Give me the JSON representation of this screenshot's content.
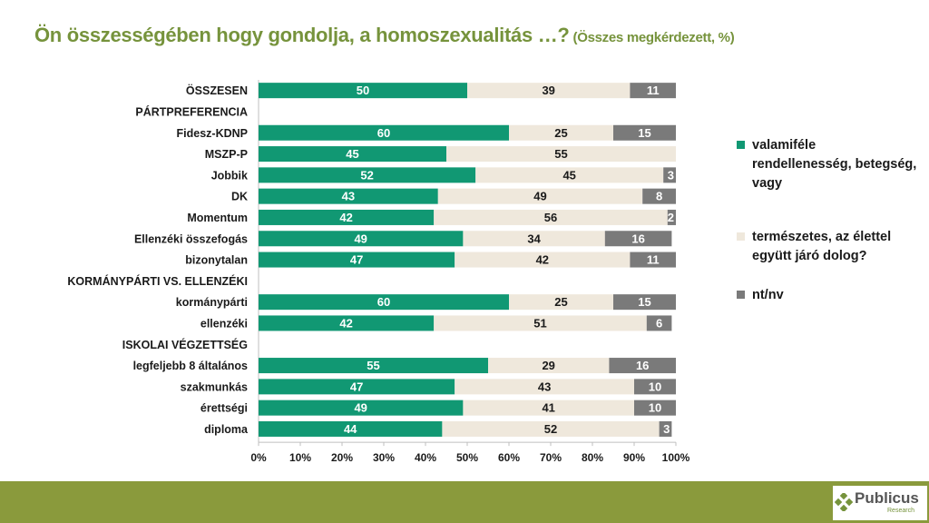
{
  "header": {
    "title": "Ön összességében hogy gondolja, a homoszexualitás …?",
    "subtitle": "(Összes megkérdezett, %)"
  },
  "legend": [
    {
      "label": "valamiféle rendellenesség, betegség, vagy",
      "color": "#119873"
    },
    {
      "label": "természetes, az élettel együtt járó dolog?",
      "color": "#efe8dc"
    },
    {
      "label": "nt/nv",
      "color": "#7a7a7a"
    }
  ],
  "chart_data": {
    "type": "bar",
    "orientation": "horizontal",
    "stacked": true,
    "title": "Ön összességében hogy gondolja, a homoszexualitás …?",
    "subtitle": "(Összes megkérdezett, %)",
    "xlim": [
      0,
      100
    ],
    "x_ticks": [
      "0%",
      "10%",
      "20%",
      "30%",
      "40%",
      "50%",
      "60%",
      "70%",
      "80%",
      "90%",
      "100%"
    ],
    "categories": [
      "ÖSSZESEN",
      "PÁRTPREFERENCIA",
      "Fidesz-KDNP",
      "MSZP-P",
      "Jobbik",
      "DK",
      "Momentum",
      "Ellenzéki összefogás",
      "bizonytalan",
      "KORMÁNYPÁRTI VS. ELLENZÉKI",
      "kormánypárti",
      "ellenzéki",
      "ISKOLAI VÉGZETTSÉG",
      "legfeljebb 8 általános",
      "szakmunkás",
      "érettségi",
      "diploma"
    ],
    "series": [
      {
        "name": "valamiféle rendellenesség, betegség, vagy",
        "color": "#119873",
        "values": [
          50,
          null,
          60,
          45,
          52,
          43,
          42,
          49,
          47,
          null,
          60,
          42,
          null,
          55,
          47,
          49,
          44
        ]
      },
      {
        "name": "természetes, az élettel együtt járó dolog?",
        "color": "#efe8dc",
        "values": [
          39,
          null,
          25,
          55,
          45,
          49,
          56,
          34,
          42,
          null,
          25,
          51,
          null,
          29,
          43,
          41,
          52
        ]
      },
      {
        "name": "nt/nv",
        "color": "#7a7a7a",
        "values": [
          11,
          null,
          15,
          null,
          3,
          8,
          2,
          16,
          11,
          null,
          15,
          6,
          null,
          16,
          10,
          10,
          3
        ]
      }
    ]
  },
  "brand": {
    "name": "Publicus",
    "sub": "Research"
  }
}
